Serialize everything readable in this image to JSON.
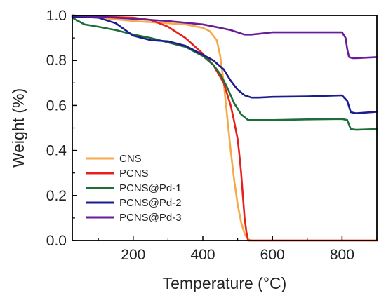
{
  "chart_data": {
    "type": "line",
    "xlabel": "Temperature (°C)",
    "ylabel": "Weight (%)",
    "xlim": [
      25,
      900
    ],
    "ylim": [
      0,
      1.0
    ],
    "x_ticks": [
      "200",
      "400",
      "600",
      "800"
    ],
    "y_ticks": [
      "0.0",
      "0.2",
      "0.4",
      "0.6",
      "0.8",
      "1.0"
    ],
    "grid": false,
    "legend_position": "bottom-left",
    "series": [
      {
        "name": "CNS",
        "color": "#f7a94a",
        "x": [
          25,
          100,
          200,
          300,
          350,
          400,
          420,
          440,
          450,
          460,
          470,
          480,
          490,
          500,
          510,
          520,
          530,
          540,
          600,
          700,
          800,
          900
        ],
        "y": [
          1.0,
          0.99,
          0.975,
          0.965,
          0.96,
          0.945,
          0.93,
          0.89,
          0.82,
          0.7,
          0.55,
          0.4,
          0.27,
          0.16,
          0.08,
          0.03,
          0.005,
          0.0,
          0.0,
          0.0,
          0.0,
          0.0
        ]
      },
      {
        "name": "PCNS",
        "color": "#e8201c",
        "x": [
          25,
          100,
          200,
          250,
          300,
          350,
          400,
          430,
          460,
          480,
          490,
          500,
          505,
          510,
          515,
          520,
          525,
          530,
          540,
          600,
          700,
          800,
          900
        ],
        "y": [
          1.0,
          0.995,
          0.99,
          0.98,
          0.95,
          0.9,
          0.83,
          0.78,
          0.7,
          0.6,
          0.53,
          0.45,
          0.38,
          0.3,
          0.2,
          0.1,
          0.04,
          0.0,
          0.0,
          0.0,
          0.0,
          0.0,
          0.0
        ]
      },
      {
        "name": "PCNS@Pd-1",
        "color": "#1f6e3a",
        "x": [
          25,
          60,
          100,
          150,
          200,
          250,
          300,
          350,
          400,
          430,
          450,
          470,
          490,
          510,
          530,
          550,
          600,
          700,
          800,
          815,
          825,
          840,
          900
        ],
        "y": [
          0.99,
          0.96,
          0.95,
          0.935,
          0.915,
          0.9,
          0.88,
          0.86,
          0.82,
          0.78,
          0.74,
          0.68,
          0.61,
          0.56,
          0.535,
          0.535,
          0.535,
          0.538,
          0.54,
          0.535,
          0.495,
          0.492,
          0.495
        ]
      },
      {
        "name": "PCNS@Pd-2",
        "color": "#1c1c8e",
        "x": [
          25,
          100,
          150,
          200,
          250,
          300,
          350,
          400,
          430,
          460,
          480,
          500,
          520,
          540,
          560,
          600,
          700,
          800,
          815,
          825,
          840,
          900
        ],
        "y": [
          0.995,
          0.99,
          0.965,
          0.91,
          0.89,
          0.885,
          0.865,
          0.825,
          0.8,
          0.76,
          0.71,
          0.67,
          0.645,
          0.635,
          0.635,
          0.638,
          0.64,
          0.645,
          0.62,
          0.57,
          0.565,
          0.572
        ]
      },
      {
        "name": "PCNS@Pd-3",
        "color": "#6a1b9a",
        "x": [
          25,
          100,
          200,
          300,
          400,
          450,
          480,
          500,
          520,
          540,
          600,
          700,
          800,
          810,
          815,
          820,
          830,
          840,
          900
        ],
        "y": [
          1.0,
          0.995,
          0.985,
          0.975,
          0.96,
          0.945,
          0.935,
          0.925,
          0.915,
          0.915,
          0.925,
          0.925,
          0.925,
          0.9,
          0.85,
          0.815,
          0.81,
          0.81,
          0.815
        ]
      }
    ]
  }
}
